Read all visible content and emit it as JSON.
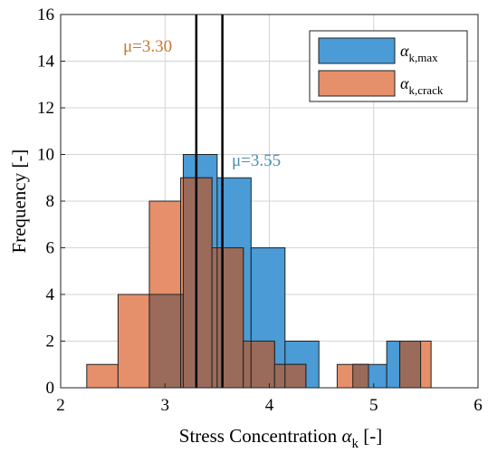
{
  "chart_data": {
    "type": "histogram",
    "xlabel_main": "Stress Concentration ",
    "xlabel_symbol": "α",
    "xlabel_sub": "k",
    "xlabel_tail": " [-]",
    "ylabel": "Frequency [-]",
    "xlim": [
      2,
      6
    ],
    "ylim": [
      0,
      16
    ],
    "xticks": [
      "2",
      "3",
      "4",
      "5",
      "6"
    ],
    "yticks": [
      "0",
      "2",
      "4",
      "6",
      "8",
      "10",
      "12",
      "14",
      "16"
    ],
    "grid": true,
    "legend_position": "top-right",
    "series": [
      {
        "name": "αk,max",
        "symbol": "α",
        "sub": "k,max",
        "color": "#4a9bd6",
        "bins": [
          {
            "x0": 2.85,
            "x1": 3.175,
            "count": 4
          },
          {
            "x0": 3.175,
            "x1": 3.5,
            "count": 10
          },
          {
            "x0": 3.5,
            "x1": 3.825,
            "count": 9
          },
          {
            "x0": 3.825,
            "x1": 4.15,
            "count": 6
          },
          {
            "x0": 4.15,
            "x1": 4.475,
            "count": 2
          },
          {
            "x0": 4.475,
            "x1": 4.8,
            "count": 0
          },
          {
            "x0": 4.8,
            "x1": 5.125,
            "count": 1
          },
          {
            "x0": 5.125,
            "x1": 5.45,
            "count": 2
          }
        ]
      },
      {
        "name": "αk,crack",
        "symbol": "α",
        "sub": "k,crack",
        "color": "#e5906a",
        "bins": [
          {
            "x0": 2.25,
            "x1": 2.55,
            "count": 1
          },
          {
            "x0": 2.55,
            "x1": 2.85,
            "count": 4
          },
          {
            "x0": 2.85,
            "x1": 3.15,
            "count": 8
          },
          {
            "x0": 3.15,
            "x1": 3.45,
            "count": 9
          },
          {
            "x0": 3.45,
            "x1": 3.75,
            "count": 6
          },
          {
            "x0": 3.75,
            "x1": 4.05,
            "count": 2
          },
          {
            "x0": 4.05,
            "x1": 4.35,
            "count": 1
          },
          {
            "x0": 4.35,
            "x1": 4.65,
            "count": 0
          },
          {
            "x0": 4.65,
            "x1": 4.95,
            "count": 1
          },
          {
            "x0": 4.95,
            "x1": 5.25,
            "count": 0
          },
          {
            "x0": 5.25,
            "x1": 5.55,
            "count": 2
          }
        ]
      }
    ],
    "overlap_color": "#9a6b5a",
    "mean_lines": [
      {
        "name": "mean-crack",
        "x": 3.3,
        "label": "μ=3.30",
        "color": "#c8782e"
      },
      {
        "name": "mean-max",
        "x": 3.55,
        "label": "μ=3.55",
        "color": "#4a8fb0"
      }
    ]
  }
}
